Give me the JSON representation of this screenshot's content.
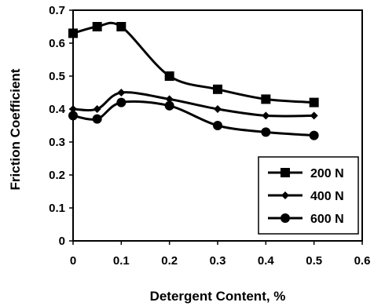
{
  "chart_data": {
    "type": "line",
    "title": "",
    "xlabel": "Detergent Content, %",
    "ylabel": "Friction Coefficient",
    "xlim": [
      0,
      0.6
    ],
    "ylim": [
      0,
      0.7
    ],
    "x_ticks": [
      "0",
      "0.1",
      "0.2",
      "0.3",
      "0.4",
      "0.5",
      "0.6"
    ],
    "y_ticks": [
      "0",
      "0.1",
      "0.2",
      "0.3",
      "0.4",
      "0.5",
      "0.6",
      "0.7"
    ],
    "grid": false,
    "legend_position": "bottom-right",
    "series": [
      {
        "name": "200 N",
        "marker": "square",
        "x": [
          0,
          0.05,
          0.1,
          0.2,
          0.3,
          0.4,
          0.5
        ],
        "y": [
          0.63,
          0.65,
          0.65,
          0.5,
          0.46,
          0.43,
          0.42
        ]
      },
      {
        "name": "400 N",
        "marker": "diamond",
        "x": [
          0,
          0.05,
          0.1,
          0.2,
          0.3,
          0.4,
          0.5
        ],
        "y": [
          0.4,
          0.4,
          0.45,
          0.43,
          0.4,
          0.38,
          0.38
        ]
      },
      {
        "name": "600 N",
        "marker": "circle",
        "x": [
          0,
          0.05,
          0.1,
          0.2,
          0.3,
          0.4,
          0.5
        ],
        "y": [
          0.38,
          0.37,
          0.42,
          0.41,
          0.35,
          0.33,
          0.32
        ]
      }
    ],
    "line_color": "#000000"
  }
}
